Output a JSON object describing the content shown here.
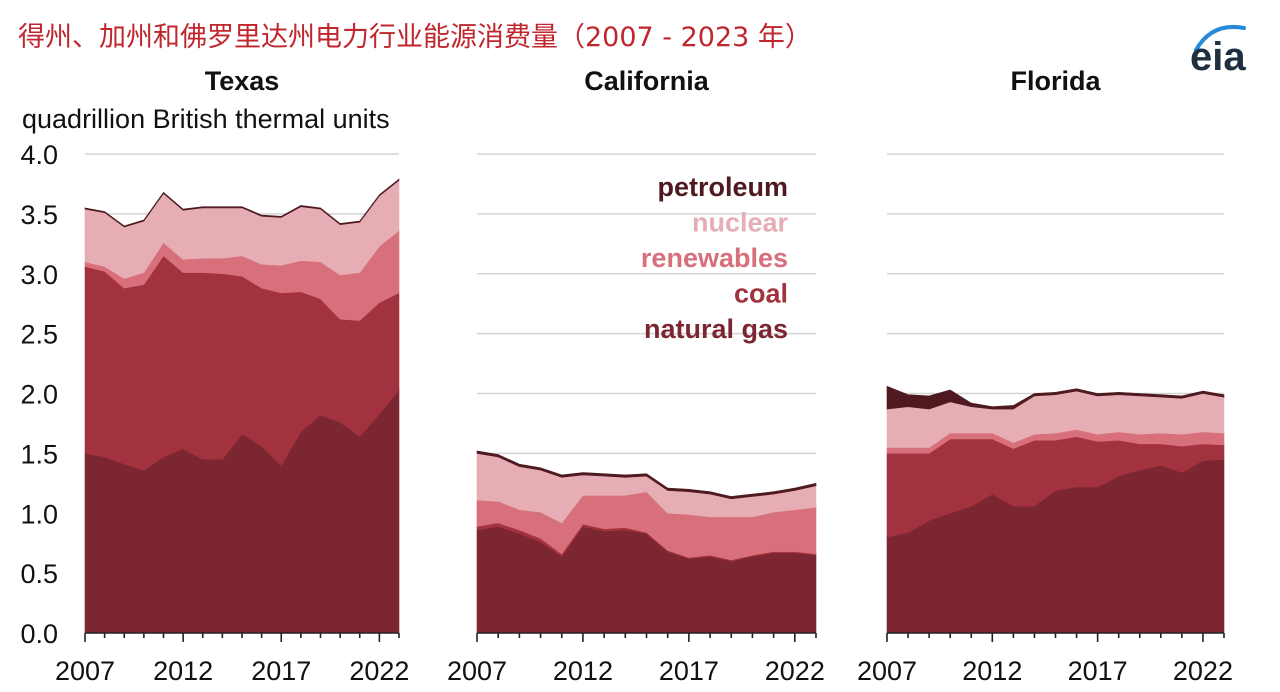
{
  "page_title": "得州、加州和佛罗里达州电力行业能源消费量（2007 - 2023 年）",
  "logo_text": "eia",
  "colors": {
    "natural_gas": "#7c2631",
    "coal": "#a3323f",
    "renewables": "#d8707b",
    "nuclear": "#e6aeb4",
    "petroleum": "#4e1a20",
    "title": "#c0262d"
  },
  "series_order": [
    "natural gas",
    "coal",
    "renewables",
    "nuclear",
    "petroleum"
  ],
  "legend": {
    "entries": [
      "petroleum",
      "nuclear",
      "renewables",
      "coal",
      "natural gas"
    ],
    "placement": "top-right of California panel"
  },
  "y_axis": {
    "label": "quadrillion British thermal units",
    "ticks": [
      "0.0",
      "0.5",
      "1.0",
      "1.5",
      "2.0",
      "2.5",
      "3.0",
      "3.5",
      "4.0"
    ],
    "range": [
      0,
      4
    ]
  },
  "x_axis": {
    "ticks": [
      "2007",
      "2012",
      "2017",
      "2022"
    ],
    "range": [
      2007,
      2023
    ]
  },
  "chart_data": [
    {
      "type": "area",
      "stacked": true,
      "title": "Texas",
      "ylabel": "quadrillion British thermal units",
      "ylim": [
        0,
        4
      ],
      "grid": true,
      "x": [
        2007,
        2008,
        2009,
        2010,
        2011,
        2012,
        2013,
        2014,
        2015,
        2016,
        2017,
        2018,
        2019,
        2020,
        2021,
        2022,
        2023
      ],
      "series": [
        {
          "name": "natural gas",
          "values": [
            1.5,
            1.47,
            1.41,
            1.36,
            1.47,
            1.54,
            1.45,
            1.45,
            1.66,
            1.56,
            1.4,
            1.68,
            1.82,
            1.76,
            1.64,
            1.83,
            2.03
          ]
        },
        {
          "name": "coal",
          "values": [
            1.56,
            1.55,
            1.47,
            1.55,
            1.68,
            1.47,
            1.56,
            1.55,
            1.32,
            1.32,
            1.44,
            1.17,
            0.97,
            0.86,
            0.97,
            0.93,
            0.81
          ]
        },
        {
          "name": "renewables",
          "values": [
            0.04,
            0.04,
            0.08,
            0.1,
            0.11,
            0.11,
            0.12,
            0.13,
            0.17,
            0.2,
            0.23,
            0.26,
            0.31,
            0.37,
            0.4,
            0.47,
            0.52
          ]
        },
        {
          "name": "nuclear",
          "values": [
            0.44,
            0.45,
            0.43,
            0.43,
            0.41,
            0.41,
            0.42,
            0.42,
            0.4,
            0.4,
            0.4,
            0.45,
            0.44,
            0.42,
            0.42,
            0.42,
            0.42
          ]
        },
        {
          "name": "petroleum",
          "values": [
            0.01,
            0.01,
            0.01,
            0.01,
            0.01,
            0.01,
            0.01,
            0.01,
            0.01,
            0.01,
            0.01,
            0.01,
            0.01,
            0.01,
            0.01,
            0.01,
            0.01
          ]
        }
      ]
    },
    {
      "type": "area",
      "stacked": true,
      "title": "California",
      "ylim": [
        0,
        4
      ],
      "grid": true,
      "x": [
        2007,
        2008,
        2009,
        2010,
        2011,
        2012,
        2013,
        2014,
        2015,
        2016,
        2017,
        2018,
        2019,
        2020,
        2021,
        2022,
        2023
      ],
      "series": [
        {
          "name": "natural gas",
          "values": [
            0.86,
            0.89,
            0.83,
            0.76,
            0.64,
            0.89,
            0.85,
            0.86,
            0.83,
            0.68,
            0.62,
            0.64,
            0.6,
            0.64,
            0.67,
            0.67,
            0.65
          ]
        },
        {
          "name": "coal",
          "values": [
            0.03,
            0.03,
            0.03,
            0.03,
            0.02,
            0.02,
            0.02,
            0.02,
            0.01,
            0.01,
            0.01,
            0.01,
            0.01,
            0.01,
            0.01,
            0.01,
            0.01
          ]
        },
        {
          "name": "renewables",
          "values": [
            0.22,
            0.18,
            0.17,
            0.22,
            0.26,
            0.24,
            0.28,
            0.27,
            0.34,
            0.31,
            0.36,
            0.32,
            0.36,
            0.32,
            0.33,
            0.35,
            0.39
          ]
        },
        {
          "name": "nuclear",
          "values": [
            0.39,
            0.37,
            0.36,
            0.35,
            0.38,
            0.17,
            0.16,
            0.15,
            0.13,
            0.19,
            0.19,
            0.19,
            0.15,
            0.17,
            0.15,
            0.16,
            0.18
          ]
        },
        {
          "name": "petroleum",
          "values": [
            0.02,
            0.02,
            0.02,
            0.02,
            0.02,
            0.02,
            0.02,
            0.02,
            0.02,
            0.02,
            0.02,
            0.02,
            0.02,
            0.02,
            0.02,
            0.02,
            0.02
          ]
        }
      ]
    },
    {
      "type": "area",
      "stacked": true,
      "title": "Florida",
      "ylim": [
        0,
        4
      ],
      "grid": true,
      "x": [
        2007,
        2008,
        2009,
        2010,
        2011,
        2012,
        2013,
        2014,
        2015,
        2016,
        2017,
        2018,
        2019,
        2020,
        2021,
        2022,
        2023
      ],
      "series": [
        {
          "name": "natural gas",
          "values": [
            0.8,
            0.84,
            0.94,
            1.0,
            1.06,
            1.16,
            1.06,
            1.06,
            1.19,
            1.22,
            1.22,
            1.31,
            1.36,
            1.4,
            1.34,
            1.44,
            1.45
          ]
        },
        {
          "name": "coal",
          "values": [
            0.7,
            0.66,
            0.56,
            0.62,
            0.56,
            0.46,
            0.48,
            0.55,
            0.42,
            0.42,
            0.38,
            0.3,
            0.22,
            0.18,
            0.22,
            0.14,
            0.12
          ]
        },
        {
          "name": "renewables",
          "values": [
            0.05,
            0.05,
            0.05,
            0.05,
            0.05,
            0.05,
            0.05,
            0.05,
            0.06,
            0.06,
            0.06,
            0.07,
            0.08,
            0.09,
            0.1,
            0.1,
            0.1
          ]
        },
        {
          "name": "nuclear",
          "values": [
            0.32,
            0.34,
            0.32,
            0.26,
            0.22,
            0.2,
            0.28,
            0.32,
            0.32,
            0.32,
            0.32,
            0.31,
            0.32,
            0.3,
            0.3,
            0.32,
            0.3
          ]
        },
        {
          "name": "petroleum",
          "values": [
            0.19,
            0.1,
            0.11,
            0.1,
            0.03,
            0.02,
            0.03,
            0.02,
            0.02,
            0.02,
            0.02,
            0.02,
            0.02,
            0.02,
            0.02,
            0.02,
            0.02
          ]
        }
      ]
    }
  ]
}
